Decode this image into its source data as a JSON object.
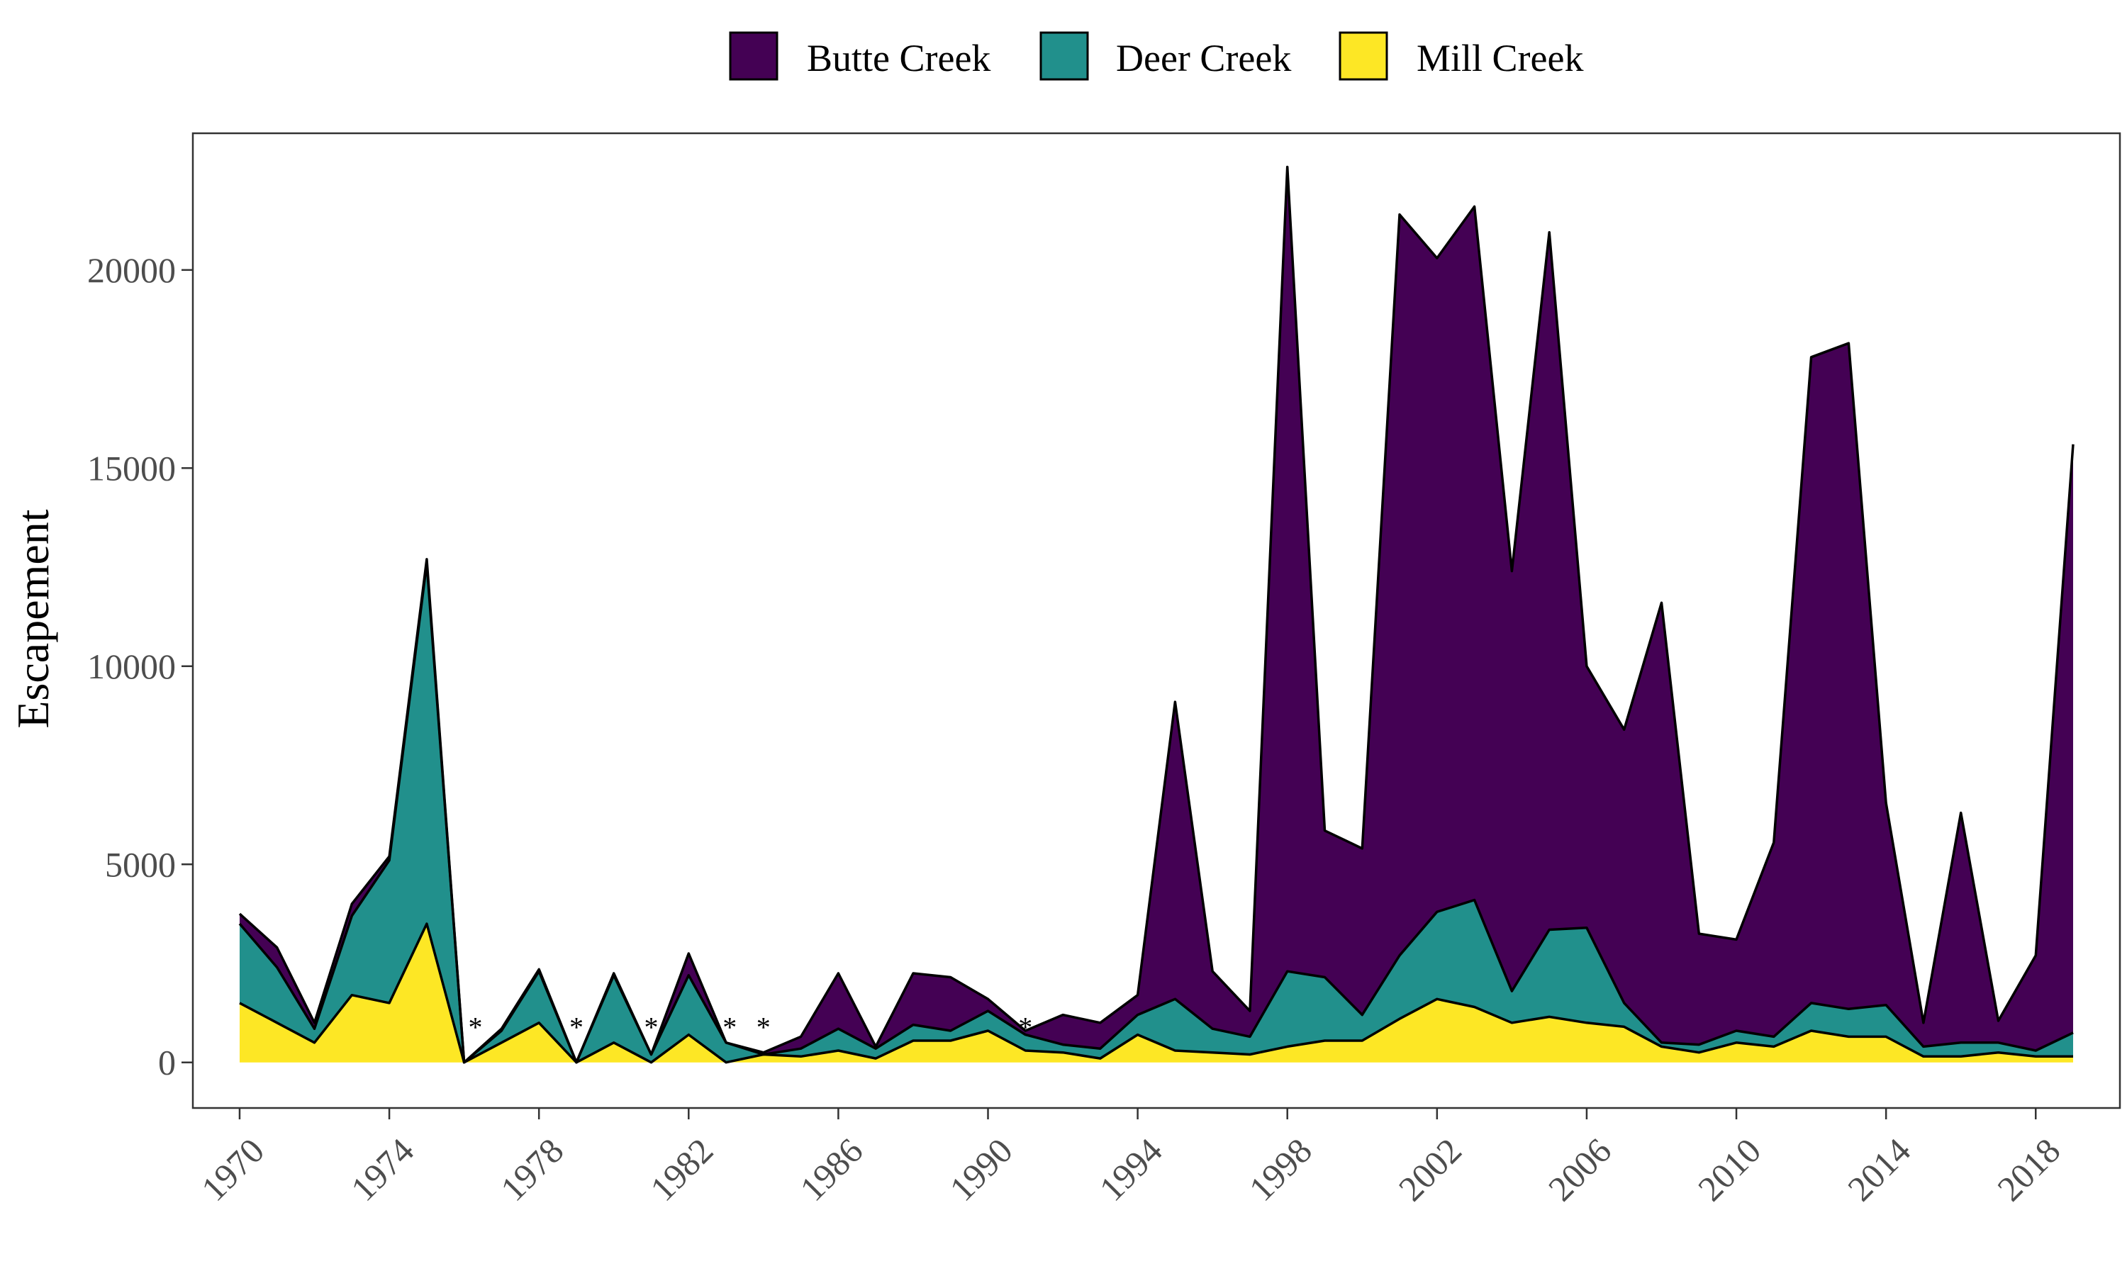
{
  "chart_data": {
    "type": "area",
    "stacked": true,
    "title": "",
    "xlabel": "",
    "ylabel": "Escapement",
    "xlim": [
      1968.75,
      2020.25
    ],
    "ylim": [
      -1150,
      23450
    ],
    "x_ticks": [
      1970,
      1974,
      1978,
      1982,
      1986,
      1990,
      1994,
      1998,
      2002,
      2006,
      2010,
      2014,
      2018
    ],
    "y_ticks": [
      0,
      5000,
      10000,
      15000,
      20000
    ],
    "grid": false,
    "legend_position": "top",
    "years": [
      1970,
      1971,
      1972,
      1973,
      1974,
      1975,
      1976,
      1977,
      1978,
      1979,
      1980,
      1981,
      1982,
      1983,
      1984,
      1985,
      1986,
      1987,
      1988,
      1989,
      1990,
      1991,
      1992,
      1993,
      1994,
      1995,
      1996,
      1997,
      1998,
      1999,
      2000,
      2001,
      2002,
      2003,
      2004,
      2005,
      2006,
      2007,
      2008,
      2009,
      2010,
      2011,
      2012,
      2013,
      2014,
      2015,
      2016,
      2017,
      2018,
      2019
    ],
    "series": [
      {
        "name": "Butte Creek",
        "color": "#440154",
        "values": [
          250,
          500,
          150,
          300,
          100,
          100,
          0,
          50,
          50,
          0,
          50,
          0,
          550,
          0,
          50,
          300,
          1400,
          50,
          1300,
          1350,
          300,
          100,
          750,
          650,
          500,
          7500,
          1450,
          650,
          20300,
          3700,
          4200,
          18700,
          16500,
          17500,
          10600,
          17600,
          6600,
          6900,
          11100,
          2800,
          2300,
          4900,
          16300,
          16800,
          5100,
          600,
          5800,
          550,
          2400,
          14850
        ]
      },
      {
        "name": "Deer Creek",
        "color": "#21908C",
        "values": [
          2000,
          1400,
          350,
          2000,
          3600,
          9100,
          0,
          300,
          1300,
          0,
          1700,
          200,
          1500,
          500,
          0,
          200,
          550,
          250,
          400,
          250,
          500,
          400,
          200,
          250,
          500,
          1300,
          600,
          450,
          1900,
          1600,
          650,
          1600,
          2200,
          2700,
          800,
          2200,
          2400,
          600,
          100,
          200,
          300,
          250,
          700,
          700,
          800,
          250,
          350,
          250,
          150,
          600
        ]
      },
      {
        "name": "Mill Creek",
        "color": "#FDE725",
        "values": [
          1500,
          1000,
          500,
          1700,
          1500,
          3500,
          0,
          500,
          1000,
          0,
          500,
          0,
          700,
          0,
          200,
          150,
          300,
          100,
          550,
          550,
          800,
          300,
          250,
          100,
          700,
          300,
          250,
          200,
          400,
          550,
          550,
          1100,
          1600,
          1400,
          1000,
          1150,
          1000,
          900,
          400,
          250,
          500,
          400,
          800,
          650,
          650,
          150,
          150,
          250,
          150,
          150
        ]
      }
    ],
    "annotations": [
      {
        "x": 1976.3,
        "text": "*"
      },
      {
        "x": 1979.0,
        "text": "*"
      },
      {
        "x": 1981.0,
        "text": "*"
      },
      {
        "x": 1983.1,
        "text": "*"
      },
      {
        "x": 1984.0,
        "text": "*"
      },
      {
        "x": 1991.0,
        "text": "*"
      }
    ]
  }
}
